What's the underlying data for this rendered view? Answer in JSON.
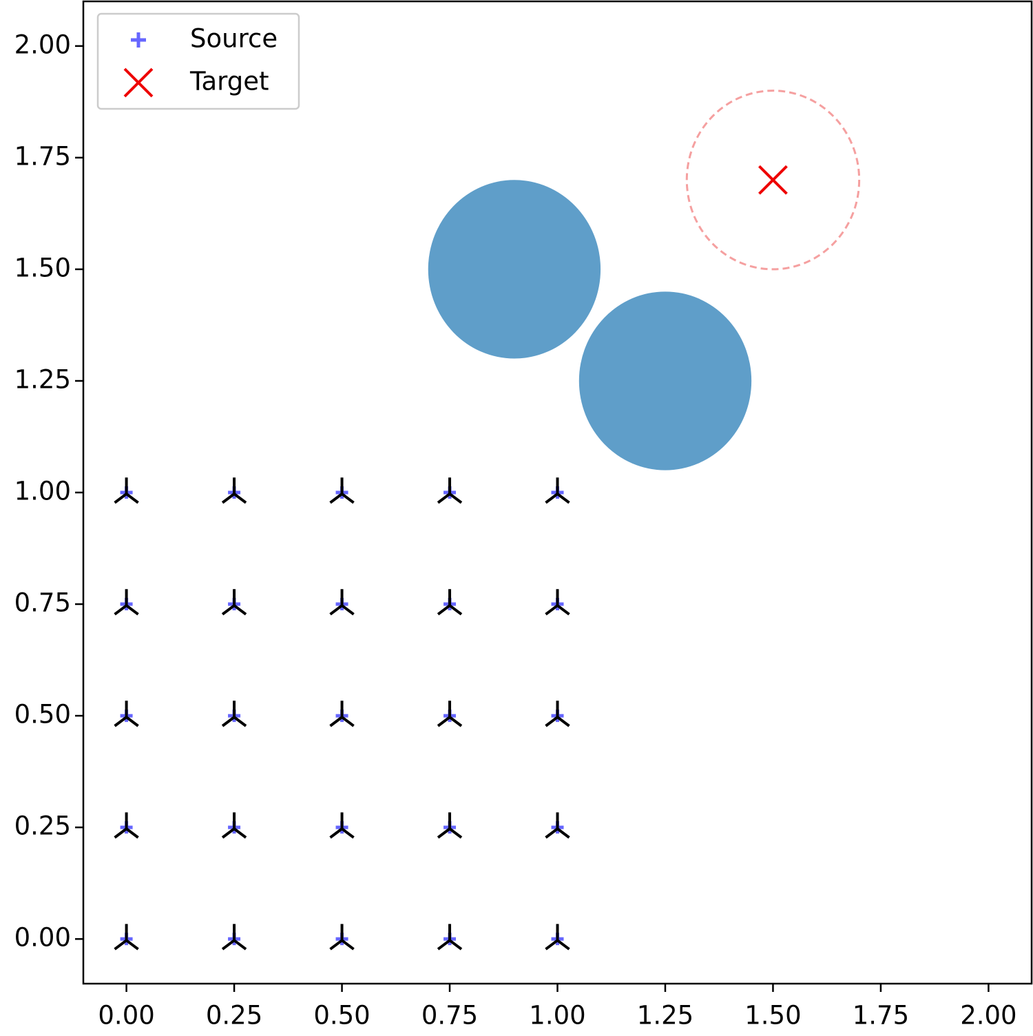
{
  "chart_data": {
    "type": "scatter",
    "xlim": [
      -0.1,
      2.1
    ],
    "ylim": [
      -0.1,
      2.1
    ],
    "xticks": [
      {
        "value": 0,
        "label": "0.00"
      },
      {
        "value": 0.25,
        "label": "0.25"
      },
      {
        "value": 0.5,
        "label": "0.50"
      },
      {
        "value": 0.75,
        "label": "0.75"
      },
      {
        "value": 1,
        "label": "1.00"
      },
      {
        "value": 1.25,
        "label": "1.25"
      },
      {
        "value": 1.5,
        "label": "1.50"
      },
      {
        "value": 1.75,
        "label": "1.75"
      },
      {
        "value": 2,
        "label": "2.00"
      }
    ],
    "yticks": [
      {
        "value": 0,
        "label": "0.00"
      },
      {
        "value": 0.25,
        "label": "0.25"
      },
      {
        "value": 0.5,
        "label": "0.50"
      },
      {
        "value": 0.75,
        "label": "0.75"
      },
      {
        "value": 1,
        "label": "1.00"
      },
      {
        "value": 1.25,
        "label": "1.25"
      },
      {
        "value": 1.5,
        "label": "1.50"
      },
      {
        "value": 1.75,
        "label": "1.75"
      },
      {
        "value": 2,
        "label": "2.00"
      }
    ],
    "grid": false,
    "legend": "upper left",
    "series": [
      {
        "name": "Source",
        "color": "#6666ff",
        "marker": "plus",
        "x": [
          0,
          0.25,
          0.5,
          0.75,
          1,
          0,
          0.25,
          0.5,
          0.75,
          1,
          0,
          0.25,
          0.5,
          0.75,
          1,
          0,
          0.25,
          0.5,
          0.75,
          1,
          0,
          0.25,
          0.5,
          0.75,
          1
        ],
        "y": [
          0,
          0,
          0,
          0,
          0,
          0.25,
          0.25,
          0.25,
          0.25,
          0.25,
          0.5,
          0.5,
          0.5,
          0.5,
          0.5,
          0.75,
          0.75,
          0.75,
          0.75,
          0.75,
          1,
          1,
          1,
          1,
          1
        ]
      },
      {
        "name": "Target",
        "color": "#ee0000",
        "marker": "x",
        "x": [
          1.5
        ],
        "y": [
          1.7
        ]
      },
      {
        "color": "#000000",
        "marker": "tri_up",
        "x": [
          0,
          0.25,
          0.5,
          0.75,
          1,
          0,
          0.25,
          0.5,
          0.75,
          1,
          0,
          0.25,
          0.5,
          0.75,
          1,
          0,
          0.25,
          0.5,
          0.75,
          1,
          0,
          0.25,
          0.5,
          0.75,
          1
        ],
        "y": [
          0,
          0,
          0,
          0,
          0,
          0.25,
          0.25,
          0.25,
          0.25,
          0.25,
          0.5,
          0.5,
          0.5,
          0.5,
          0.5,
          0.75,
          0.75,
          0.75,
          0.75,
          0.75,
          1,
          1,
          1,
          1,
          1
        ]
      }
    ],
    "obstacles": {
      "color": "#5f9ec9",
      "x": [
        0.9,
        1.25
      ],
      "y": [
        1.5,
        1.25
      ],
      "r": [
        0.2,
        0.2
      ]
    },
    "target_region": {
      "color": "#f5a0a0",
      "x": 1.5,
      "y": 1.7,
      "r": 0.2
    }
  }
}
